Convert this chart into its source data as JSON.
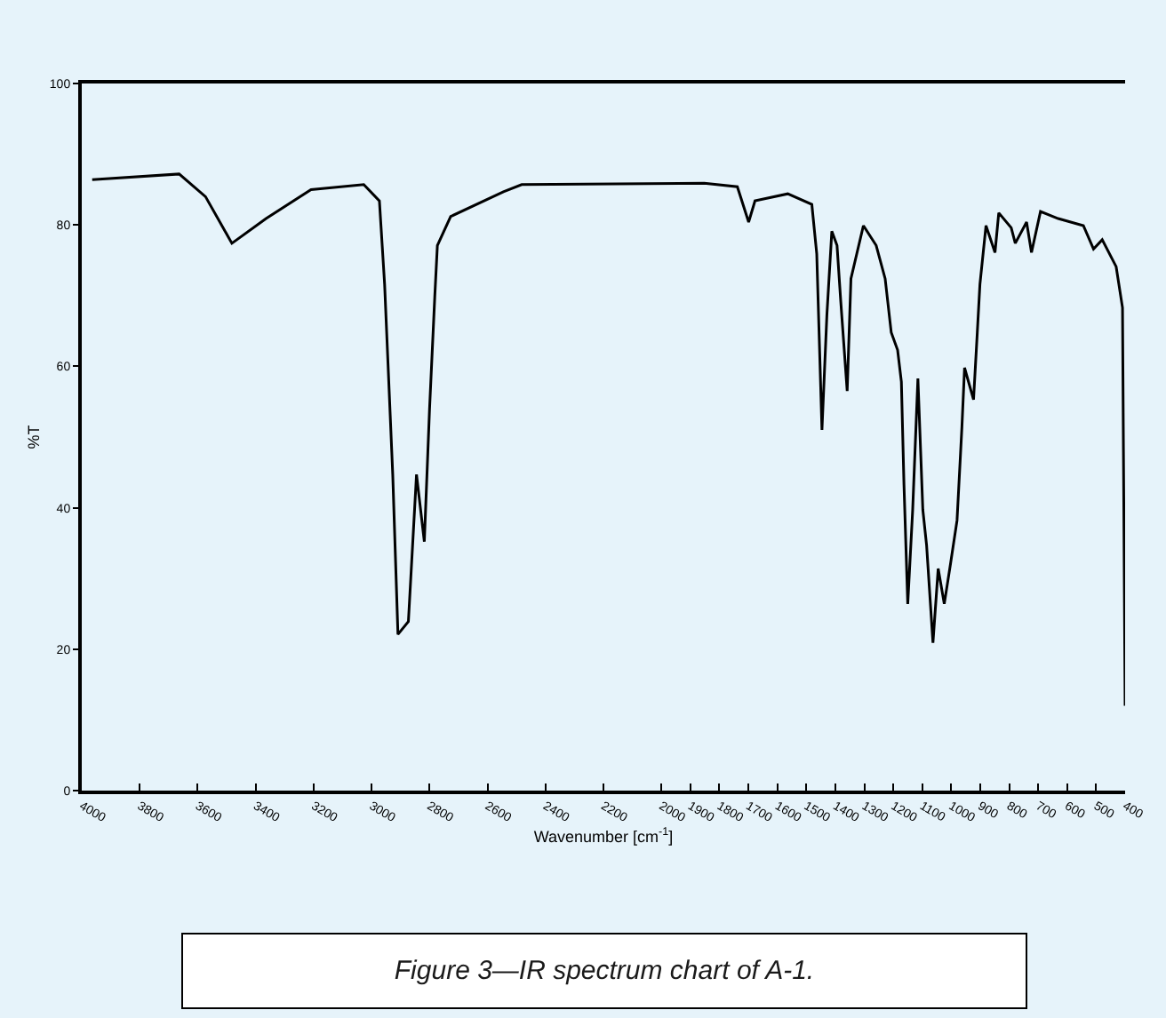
{
  "chart_data": {
    "type": "line",
    "xlabel": "Wavenumber [cm$^{-1}$]",
    "ylabel": "%T",
    "annotations": [
      "Figure 3—IR spectrum chart of A-1."
    ],
    "x": [
      3964,
      3664,
      3573,
      3482,
      3364,
      3209,
      3027,
      2973,
      2955,
      2927,
      2909,
      2873,
      2845,
      2818,
      2800,
      2782,
      2773,
      2727,
      2545,
      2482,
      1852,
      1738,
      1699,
      1677,
      1564,
      1481,
      1464,
      1446,
      1429,
      1412,
      1394,
      1381,
      1359,
      1346,
      1303,
      1259,
      1228,
      1207,
      1185,
      1172,
      1163,
      1150,
      1133,
      1115,
      1098,
      1085,
      1063,
      1045,
      1024,
      1002,
      980,
      963,
      954,
      923,
      910,
      901,
      880,
      849,
      836,
      793,
      779,
      740,
      723,
      692,
      631,
      544,
      509,
      479,
      431,
      409,
      400
    ],
    "series": [
      {
        "color": "#000000",
        "values": [
          86.4,
          87.2,
          84,
          77.4,
          80.9,
          85,
          85.7,
          83.4,
          71.6,
          44.7,
          22.1,
          23.9,
          44.7,
          35.2,
          54,
          69.8,
          77.1,
          81.2,
          84.7,
          85.7,
          85.9,
          85.4,
          80.4,
          83.4,
          84.4,
          82.9,
          75.9,
          51,
          67.3,
          79.1,
          77.1,
          69.1,
          56.5,
          72.4,
          79.9,
          77.1,
          72.4,
          64.8,
          62.3,
          57.8,
          43.2,
          26.4,
          39.7,
          58.3,
          39.7,
          34.7,
          20.9,
          31.4,
          26.4,
          32.2,
          38.2,
          51.5,
          59.8,
          55.3,
          64.8,
          71.6,
          79.9,
          76.1,
          81.7,
          79.6,
          77.4,
          80.4,
          76.1,
          81.9,
          80.9,
          79.9,
          76.6,
          77.9,
          74.1,
          68.3,
          12
        ]
      }
    ],
    "xlim": [
      4000,
      400
    ],
    "xticks": [
      4000,
      3800,
      3600,
      3400,
      3200,
      3000,
      2800,
      2600,
      2400,
      2200,
      2000,
      1900,
      1800,
      1700,
      1600,
      1500,
      1400,
      1300,
      1200,
      1100,
      1000,
      900,
      800,
      700,
      600,
      500,
      400
    ],
    "ylim": [
      0,
      100
    ],
    "yticks": [
      0,
      20,
      40,
      60,
      80,
      100
    ],
    "grid": false,
    "marker": "none",
    "line_style": "solid"
  }
}
